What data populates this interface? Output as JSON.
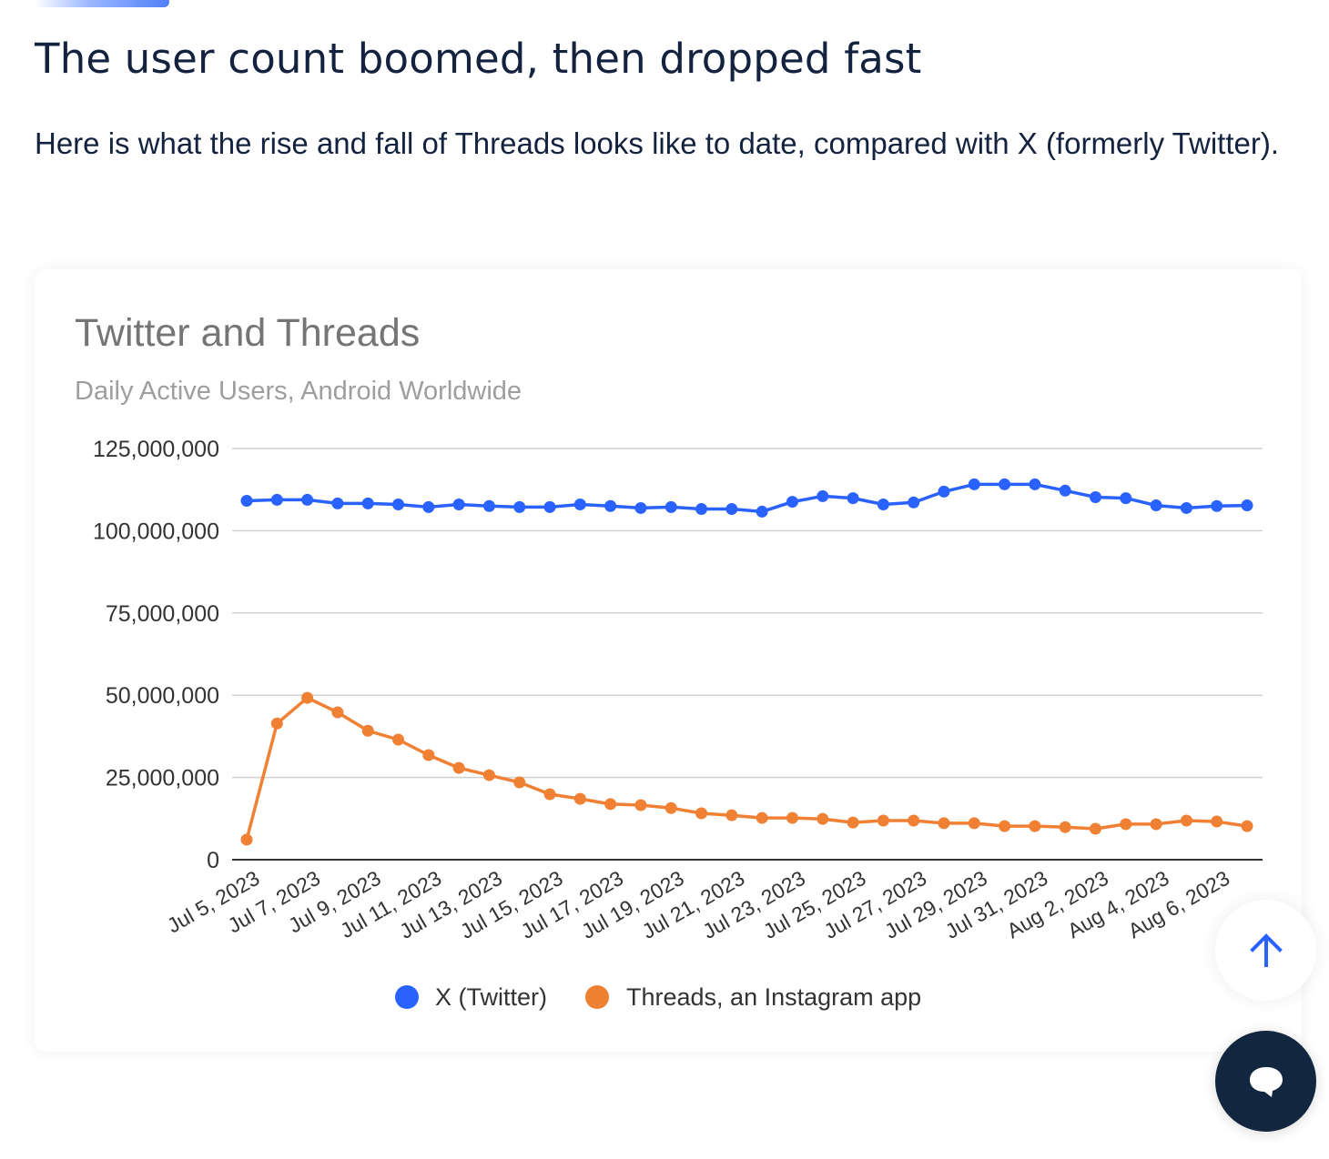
{
  "article": {
    "headline": "The user count boomed, then dropped fast",
    "intro": "Here is what the rise and fall of Threads looks like to date, compared with X (formerly Twitter)."
  },
  "floating_buttons": {
    "scroll_top_icon": "arrow-up-icon",
    "chat_icon": "chat-bubble-icon"
  },
  "chart_data": {
    "type": "line",
    "title": "Twitter and Threads",
    "subtitle": "Daily Active Users, Android Worldwide",
    "xlabel": "",
    "ylabel": "",
    "ylim": [
      0,
      125000000
    ],
    "yticks": [
      0,
      25000000,
      50000000,
      75000000,
      100000000,
      125000000
    ],
    "ytick_labels": [
      "0",
      "25,000,000",
      "50,000,000",
      "75,000,000",
      "100,000,000",
      "125,000,000"
    ],
    "grid": true,
    "legend_position": "bottom",
    "x": [
      "Jul 5, 2023",
      "Jul 6, 2023",
      "Jul 7, 2023",
      "Jul 8, 2023",
      "Jul 9, 2023",
      "Jul 10, 2023",
      "Jul 11, 2023",
      "Jul 12, 2023",
      "Jul 13, 2023",
      "Jul 14, 2023",
      "Jul 15, 2023",
      "Jul 16, 2023",
      "Jul 17, 2023",
      "Jul 18, 2023",
      "Jul 19, 2023",
      "Jul 20, 2023",
      "Jul 21, 2023",
      "Jul 22, 2023",
      "Jul 23, 2023",
      "Jul 24, 2023",
      "Jul 25, 2023",
      "Jul 26, 2023",
      "Jul 27, 2023",
      "Jul 28, 2023",
      "Jul 29, 2023",
      "Jul 30, 2023",
      "Jul 31, 2023",
      "Aug 1, 2023",
      "Aug 2, 2023",
      "Aug 3, 2023",
      "Aug 4, 2023",
      "Aug 5, 2023",
      "Aug 6, 2023",
      "Aug 7, 2023"
    ],
    "xtick_labels": [
      "Jul 5, 2023",
      "Jul 7, 2023",
      "Jul 9, 2023",
      "Jul 11, 2023",
      "Jul 13, 2023",
      "Jul 15, 2023",
      "Jul 17, 2023",
      "Jul 19, 2023",
      "Jul 21, 2023",
      "Jul 23, 2023",
      "Jul 25, 2023",
      "Jul 27, 2023",
      "Jul 29, 2023",
      "Jul 31, 2023",
      "Aug 2, 2023",
      "Aug 4, 2023",
      "Aug 6, 2023"
    ],
    "series": [
      {
        "name": "X (Twitter)",
        "color": "#2962ff",
        "values": [
          109100000,
          109400000,
          109400000,
          108300000,
          108300000,
          108000000,
          107200000,
          108000000,
          107500000,
          107200000,
          107200000,
          108000000,
          107500000,
          106900000,
          107200000,
          106600000,
          106600000,
          105800000,
          108800000,
          110500000,
          109900000,
          108000000,
          108600000,
          111900000,
          114100000,
          114100000,
          114100000,
          112200000,
          110200000,
          109900000,
          107700000,
          106900000,
          107500000,
          107700000
        ]
      },
      {
        "name": "Threads, an Instagram app",
        "color": "#f08033",
        "values": [
          6100000,
          41400000,
          49200000,
          44800000,
          39200000,
          36500000,
          31800000,
          27900000,
          25700000,
          23500000,
          19900000,
          18500000,
          16900000,
          16600000,
          15700000,
          14100000,
          13500000,
          12700000,
          12700000,
          12400000,
          11300000,
          11900000,
          11900000,
          11100000,
          11100000,
          10200000,
          10200000,
          9900000,
          9400000,
          10800000,
          10800000,
          11900000,
          11600000,
          10200000
        ]
      }
    ]
  }
}
